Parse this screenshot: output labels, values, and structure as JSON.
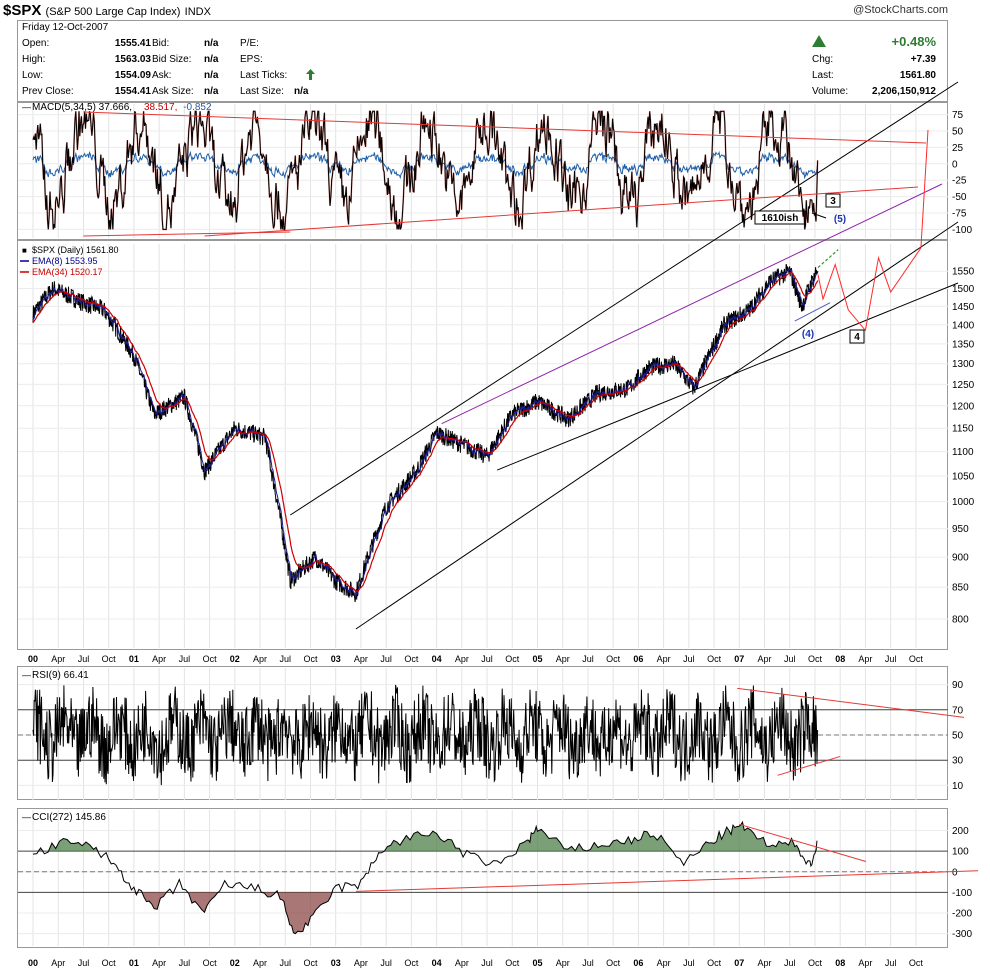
{
  "header": {
    "symbol": "$SPX",
    "name": "(S&P 500 Large Cap Index)",
    "exchange": "INDX",
    "copyright": "@StockCharts.com"
  },
  "quote": {
    "date": "Friday  12-Oct-2007",
    "open_label": "Open:",
    "open": "1555.41",
    "high_label": "High:",
    "high": "1563.03",
    "low_label": "Low:",
    "low": "1554.09",
    "prev_label": "Prev Close:",
    "prev": "1554.41",
    "bid_label": "Bid:",
    "bid": "n/a",
    "bidsize_label": "Bid Size:",
    "bidsize": "n/a",
    "ask_label": "Ask:",
    "ask": "n/a",
    "asksize_label": "Ask Size:",
    "asksize": "n/a",
    "pe_label": "P/E:",
    "eps_label": "EPS:",
    "ticks_label": "Last Ticks:",
    "lastsize_label": "Last Size:",
    "lastsize": "n/a",
    "pct": "+0.48%",
    "chg_label": "Chg:",
    "chg": "+7.39",
    "last_label": "Last:",
    "last": "1561.80",
    "volume_label": "Volume:",
    "volume": "2,206,150,912",
    "up_color": "#2e7d32"
  },
  "chart_data": [
    {
      "type": "line",
      "title": "MACD(5,34,5) 37.666, 38.517, -0.852",
      "legend": [
        {
          "text": "MACD(5,34,5) 37.666",
          "color": "#000000"
        },
        {
          "text": "38.517",
          "color": "#cc0000"
        },
        {
          "text": "-0.852",
          "color": "#1f5fa8"
        }
      ],
      "ylim": [
        -110,
        85
      ],
      "yticks": [
        75,
        50,
        25,
        0,
        -25,
        -50,
        -75,
        -100
      ],
      "annotations": [
        "3",
        "1610ish",
        "(5)"
      ]
    },
    {
      "type": "line",
      "title": "$SPX (Daily) 1561.80",
      "legend": [
        {
          "text": "$SPX (Daily) 1561.80",
          "color": "#000000"
        },
        {
          "text": "EMA(8) 1553.95",
          "color": "#00008b"
        },
        {
          "text": "EMA(34) 1520.17",
          "color": "#cc0000"
        }
      ],
      "yscale": "log",
      "ylim": [
        760,
        1620
      ],
      "yticks": [
        1550,
        1500,
        1450,
        1400,
        1350,
        1300,
        1250,
        1200,
        1150,
        1100,
        1050,
        1000,
        950,
        900,
        850,
        800
      ],
      "x": [
        2000.0,
        2000.2,
        2000.5,
        2000.7,
        2001.0,
        2001.2,
        2001.5,
        2001.7,
        2002.0,
        2002.3,
        2002.55,
        2002.8,
        2003.0,
        2003.2,
        2003.5,
        2003.8,
        2004.0,
        2004.2,
        2004.5,
        2004.75,
        2005.0,
        2005.3,
        2005.6,
        2005.9,
        2006.1,
        2006.35,
        2006.55,
        2006.85,
        2007.1,
        2007.3,
        2007.5,
        2007.62,
        2007.78
      ],
      "y": [
        1430,
        1500,
        1460,
        1440,
        1320,
        1180,
        1220,
        1060,
        1150,
        1130,
        860,
        900,
        860,
        840,
        990,
        1060,
        1140,
        1120,
        1090,
        1180,
        1210,
        1170,
        1230,
        1240,
        1290,
        1300,
        1240,
        1400,
        1440,
        1520,
        1550,
        1450,
        1561.8
      ],
      "annotations": [
        "(4)",
        "4"
      ]
    },
    {
      "type": "line",
      "title": "RSI(9) 66.41",
      "ylim": [
        0,
        100
      ],
      "yticks": [
        90,
        70,
        50,
        30,
        10
      ]
    },
    {
      "type": "area",
      "title": "CCI(272) 145.86",
      "ylim": [
        -350,
        280
      ],
      "yticks": [
        200,
        100,
        0,
        -100,
        -200,
        -300
      ]
    }
  ],
  "x_axis": {
    "labels": [
      "00",
      "Apr",
      "Jul",
      "Oct",
      "01",
      "Apr",
      "Jul",
      "Oct",
      "02",
      "Apr",
      "Jul",
      "Oct",
      "03",
      "Apr",
      "Jul",
      "Oct",
      "04",
      "Apr",
      "Jul",
      "Oct",
      "05",
      "Apr",
      "Jul",
      "Oct",
      "06",
      "Apr",
      "Jul",
      "Oct",
      "07",
      "Apr",
      "Jul",
      "Oct",
      "08",
      "Apr",
      "Jul",
      "Oct"
    ]
  }
}
